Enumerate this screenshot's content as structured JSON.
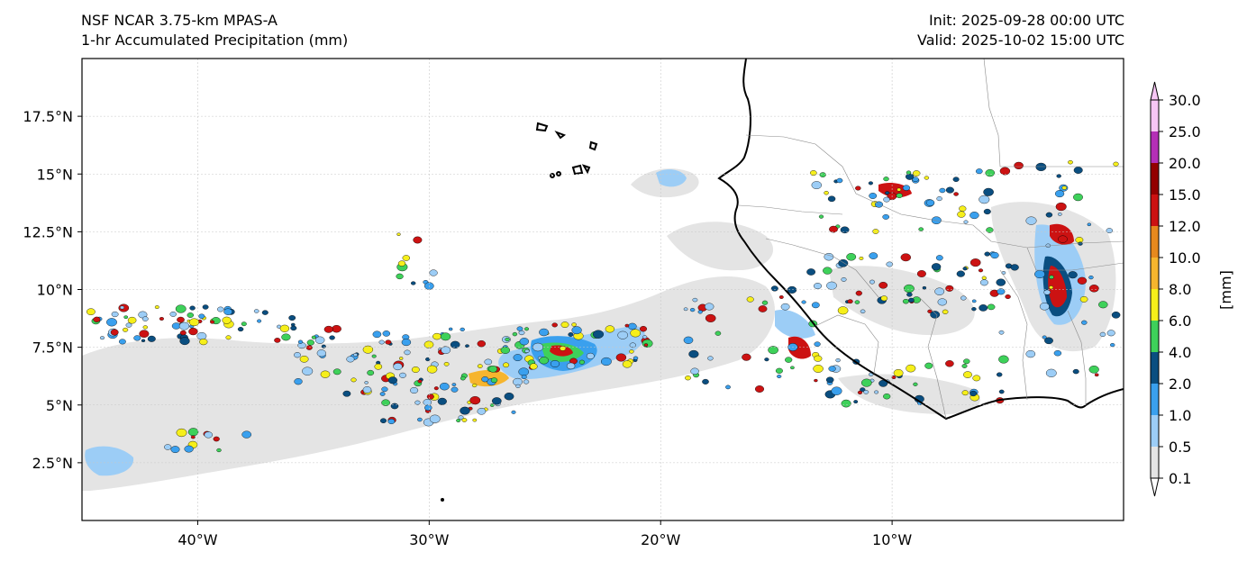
{
  "header": {
    "model": "NSF NCAR 3.75-km MPAS-A",
    "field": "1-hr Accumulated Precipitation (mm)",
    "init": "Init: 2025-09-28 00:00 UTC",
    "valid": "Valid: 2025-10-02 15:00 UTC"
  },
  "map": {
    "lon_range": [
      -45,
      0
    ],
    "lat_range": [
      0,
      20
    ],
    "lon_ticks": [
      {
        "value": -40,
        "label": "40°W"
      },
      {
        "value": -30,
        "label": "30°W"
      },
      {
        "value": -20,
        "label": "20°W"
      },
      {
        "value": -10,
        "label": "10°W"
      }
    ],
    "lat_ticks": [
      {
        "value": 2.5,
        "label": "2.5°N"
      },
      {
        "value": 5,
        "label": "5°N"
      },
      {
        "value": 7.5,
        "label": "7.5°N"
      },
      {
        "value": 10,
        "label": "10°N"
      },
      {
        "value": 12.5,
        "label": "12.5°N"
      },
      {
        "value": 15,
        "label": "15°N"
      },
      {
        "value": 17.5,
        "label": "17.5°N"
      }
    ],
    "gridlines": true
  },
  "colorbar": {
    "unit_label": "[mm]",
    "extend": "both",
    "levels": [
      {
        "label": "0.1",
        "color": "#e4e4e4"
      },
      {
        "label": "0.5",
        "color": "#9ccdf6"
      },
      {
        "label": "1.0",
        "color": "#3aa0ee"
      },
      {
        "label": "2.0",
        "color": "#0a4e80"
      },
      {
        "label": "4.0",
        "color": "#3ed15a"
      },
      {
        "label": "6.0",
        "color": "#f6ef1a"
      },
      {
        "label": "8.0",
        "color": "#f6b52e"
      },
      {
        "label": "10.0",
        "color": "#e7891e"
      },
      {
        "label": "12.0",
        "color": "#cc1212"
      },
      {
        "label": "15.0",
        "color": "#930000"
      },
      {
        "label": "20.0",
        "color": "#b42fb6"
      },
      {
        "label": "25.0",
        "color": "#f7c6f5"
      },
      {
        "label": "30.0",
        "color": ""
      }
    ]
  }
}
